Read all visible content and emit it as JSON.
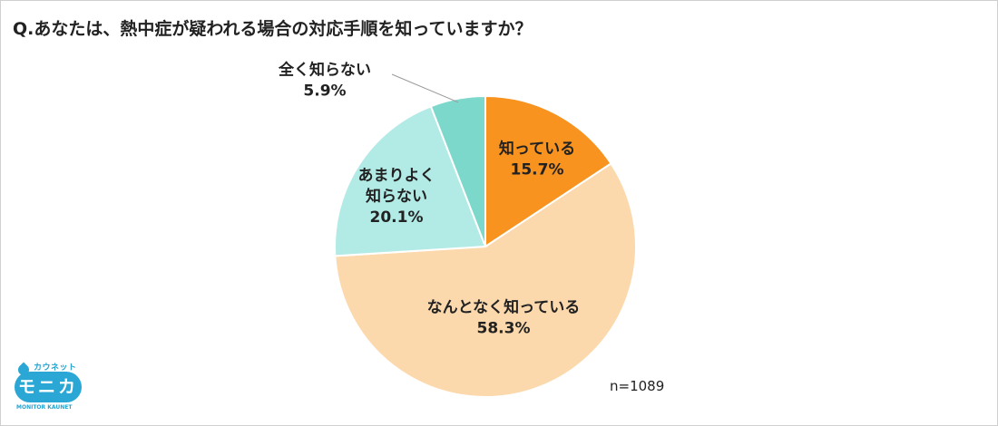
{
  "title": "Q.あなたは、熱中症が疑われる場合の対応手順を知っていますか？",
  "n_label": "n=1089",
  "logo": {
    "top": "カウネット",
    "main": "モニカ",
    "sub": "MONITOR KAUNET"
  },
  "chart_data": {
    "type": "pie",
    "title": "Q.あなたは、熱中症が疑われる場合の対応手順を知っていますか？",
    "start": "12 o'clock",
    "direction": "clockwise",
    "slices": [
      {
        "label": "知っている",
        "value": 15.7,
        "display": "15.7%",
        "color": "#f7931e"
      },
      {
        "label": "なんとなく知っている",
        "value": 58.3,
        "display": "58.3%",
        "color": "#fcd9ad"
      },
      {
        "label": "あまりよく知らない",
        "value": 20.1,
        "display": "20.1%",
        "color": "#b2ebe6"
      },
      {
        "label": "全く知らない",
        "value": 5.9,
        "display": "5.9%",
        "color": "#7dd8cc"
      }
    ],
    "note": "n=1089"
  }
}
